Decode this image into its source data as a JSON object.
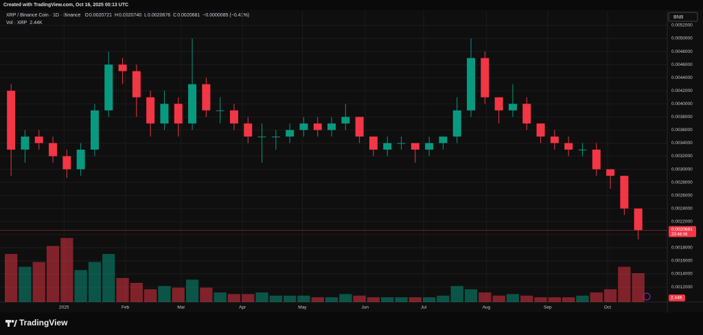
{
  "header": "Created with TradingView.com, Oct 16, 2025 00:13 UTC",
  "legend": {
    "symbol": "XRP / Binance Coin · 1D · Binance",
    "ohlc": [
      {
        "key": "O",
        "value": "0.0020721"
      },
      {
        "key": "H",
        "value": "0.0020740"
      },
      {
        "key": "L",
        "value": "0.0020676"
      },
      {
        "key": "C",
        "value": "0.0020681"
      }
    ],
    "change": "−0.0000085 (−0.41%)",
    "volume_name": "Vol · XRP",
    "volume_value": "2.44K"
  },
  "currency_button": "BNB",
  "last_price": 0.0020681,
  "countdown": "23:46:06",
  "last_volume_label": "2.44K",
  "footer": "TradingView",
  "chart_data": {
    "type": "candlestick",
    "up_color": "#089981",
    "down_color": "#f23645",
    "open": [
      0.0042,
      0.0033,
      0.0035,
      0.0034,
      0.0032,
      0.003,
      0.0033,
      0.0039,
      0.0046,
      0.0045,
      0.0041,
      0.0037,
      0.004,
      0.0037,
      0.0043,
      0.0039,
      0.0039,
      0.0037,
      0.0035,
      0.0035,
      0.0035,
      0.0036,
      0.0037,
      0.0036,
      0.0037,
      0.0038,
      0.0035,
      0.0033,
      0.0034,
      0.0034,
      0.0033,
      0.0034,
      0.0035,
      0.0039,
      0.0047,
      0.0041,
      0.0039,
      0.004,
      0.0037,
      0.0035,
      0.0034,
      0.0033,
      0.0033,
      0.003,
      0.0029,
      0.0024
    ],
    "high": [
      0.0043,
      0.0036,
      0.0036,
      0.0035,
      0.0033,
      0.0034,
      0.004,
      0.0048,
      0.0047,
      0.0046,
      0.0042,
      0.0042,
      0.0041,
      0.005,
      0.0044,
      0.0041,
      0.004,
      0.0038,
      0.0037,
      0.0036,
      0.0037,
      0.0038,
      0.0038,
      0.0038,
      0.004,
      0.0038,
      0.0035,
      0.0035,
      0.0035,
      0.0034,
      0.0035,
      0.0035,
      0.0041,
      0.005,
      0.0048,
      0.0041,
      0.0043,
      0.0041,
      0.0037,
      0.0036,
      0.0035,
      0.0034,
      0.0034,
      0.003,
      0.0029,
      0.0024
    ],
    "low": [
      0.0029,
      0.0031,
      0.0033,
      0.0031,
      0.00287,
      0.0029,
      0.0032,
      0.0038,
      0.0043,
      0.0038,
      0.0035,
      0.0036,
      0.0035,
      0.0036,
      0.0038,
      0.0037,
      0.0036,
      0.0034,
      0.0031,
      0.0033,
      0.0034,
      0.0035,
      0.0035,
      0.0035,
      0.0036,
      0.0034,
      0.0032,
      0.0032,
      0.0033,
      0.0031,
      0.0032,
      0.0033,
      0.0034,
      0.0038,
      0.004,
      0.0037,
      0.0038,
      0.0036,
      0.0034,
      0.0033,
      0.0032,
      0.0032,
      0.0029,
      0.0027,
      0.0023,
      0.00193
    ],
    "close": [
      0.0033,
      0.0035,
      0.0034,
      0.0032,
      0.003,
      0.0033,
      0.0039,
      0.0046,
      0.0045,
      0.0041,
      0.0037,
      0.004,
      0.0037,
      0.0043,
      0.0039,
      0.0039,
      0.0037,
      0.0035,
      0.0035,
      0.0035,
      0.0036,
      0.0037,
      0.0036,
      0.0037,
      0.0038,
      0.0035,
      0.0033,
      0.0034,
      0.0034,
      0.0033,
      0.0034,
      0.0035,
      0.0039,
      0.0047,
      0.0041,
      0.0039,
      0.004,
      0.0037,
      0.0035,
      0.0034,
      0.0033,
      0.0033,
      0.003,
      0.0029,
      0.0024,
      0.00207
    ],
    "volume": [
      30,
      22,
      25,
      35,
      40,
      20,
      25,
      30,
      15,
      12,
      8,
      10,
      9,
      14,
      9,
      6,
      5,
      5,
      6,
      4,
      4,
      4,
      3,
      3,
      5,
      4,
      3,
      3,
      3,
      3,
      3,
      4,
      10,
      8,
      6,
      4,
      5,
      4,
      3,
      3,
      3,
      4,
      6,
      8,
      22,
      18
    ],
    "vlim": [
      0,
      45
    ],
    "ylim": [
      0.00097,
      0.00543
    ],
    "yticks": [
      {
        "value": 0.0012,
        "label": "0.0012000"
      },
      {
        "value": 0.0014,
        "label": "0.0014000"
      },
      {
        "value": 0.0016,
        "label": "0.0016000"
      },
      {
        "value": 0.0018,
        "label": "0.0018000"
      },
      {
        "value": 0.002,
        "label": "0.0020000"
      },
      {
        "value": 0.0022,
        "label": "0.0022000"
      },
      {
        "value": 0.0024,
        "label": "0.0024000"
      },
      {
        "value": 0.0026,
        "label": "0.0026000"
      },
      {
        "value": 0.0028,
        "label": "0.0028000"
      },
      {
        "value": 0.003,
        "label": "0.0030000"
      },
      {
        "value": 0.0032,
        "label": "0.0032000"
      },
      {
        "value": 0.0034,
        "label": "0.0034000"
      },
      {
        "value": 0.0036,
        "label": "0.0036000"
      },
      {
        "value": 0.0038,
        "label": "0.0038000"
      },
      {
        "value": 0.004,
        "label": "0.0040000"
      },
      {
        "value": 0.0042,
        "label": "0.0042000"
      },
      {
        "value": 0.0044,
        "label": "0.0044000"
      },
      {
        "value": 0.0046,
        "label": "0.0046000"
      },
      {
        "value": 0.0048,
        "label": "0.0048000"
      },
      {
        "value": 0.005,
        "label": "0.0050000"
      },
      {
        "value": 0.0052,
        "label": "0.0052000"
      }
    ],
    "xticks": [
      {
        "value": 4.3,
        "label": "2025"
      },
      {
        "value": 8.7,
        "label": "Feb"
      },
      {
        "value": 12.7,
        "label": "Mar"
      },
      {
        "value": 17.1,
        "label": "Apr"
      },
      {
        "value": 21.4,
        "label": "May"
      },
      {
        "value": 25.9,
        "label": "Jun"
      },
      {
        "value": 30.1,
        "label": "Jul"
      },
      {
        "value": 34.6,
        "label": "Aug"
      },
      {
        "value": 39,
        "label": "Sep"
      },
      {
        "value": 43.3,
        "label": "Oct"
      }
    ],
    "grid": true
  }
}
